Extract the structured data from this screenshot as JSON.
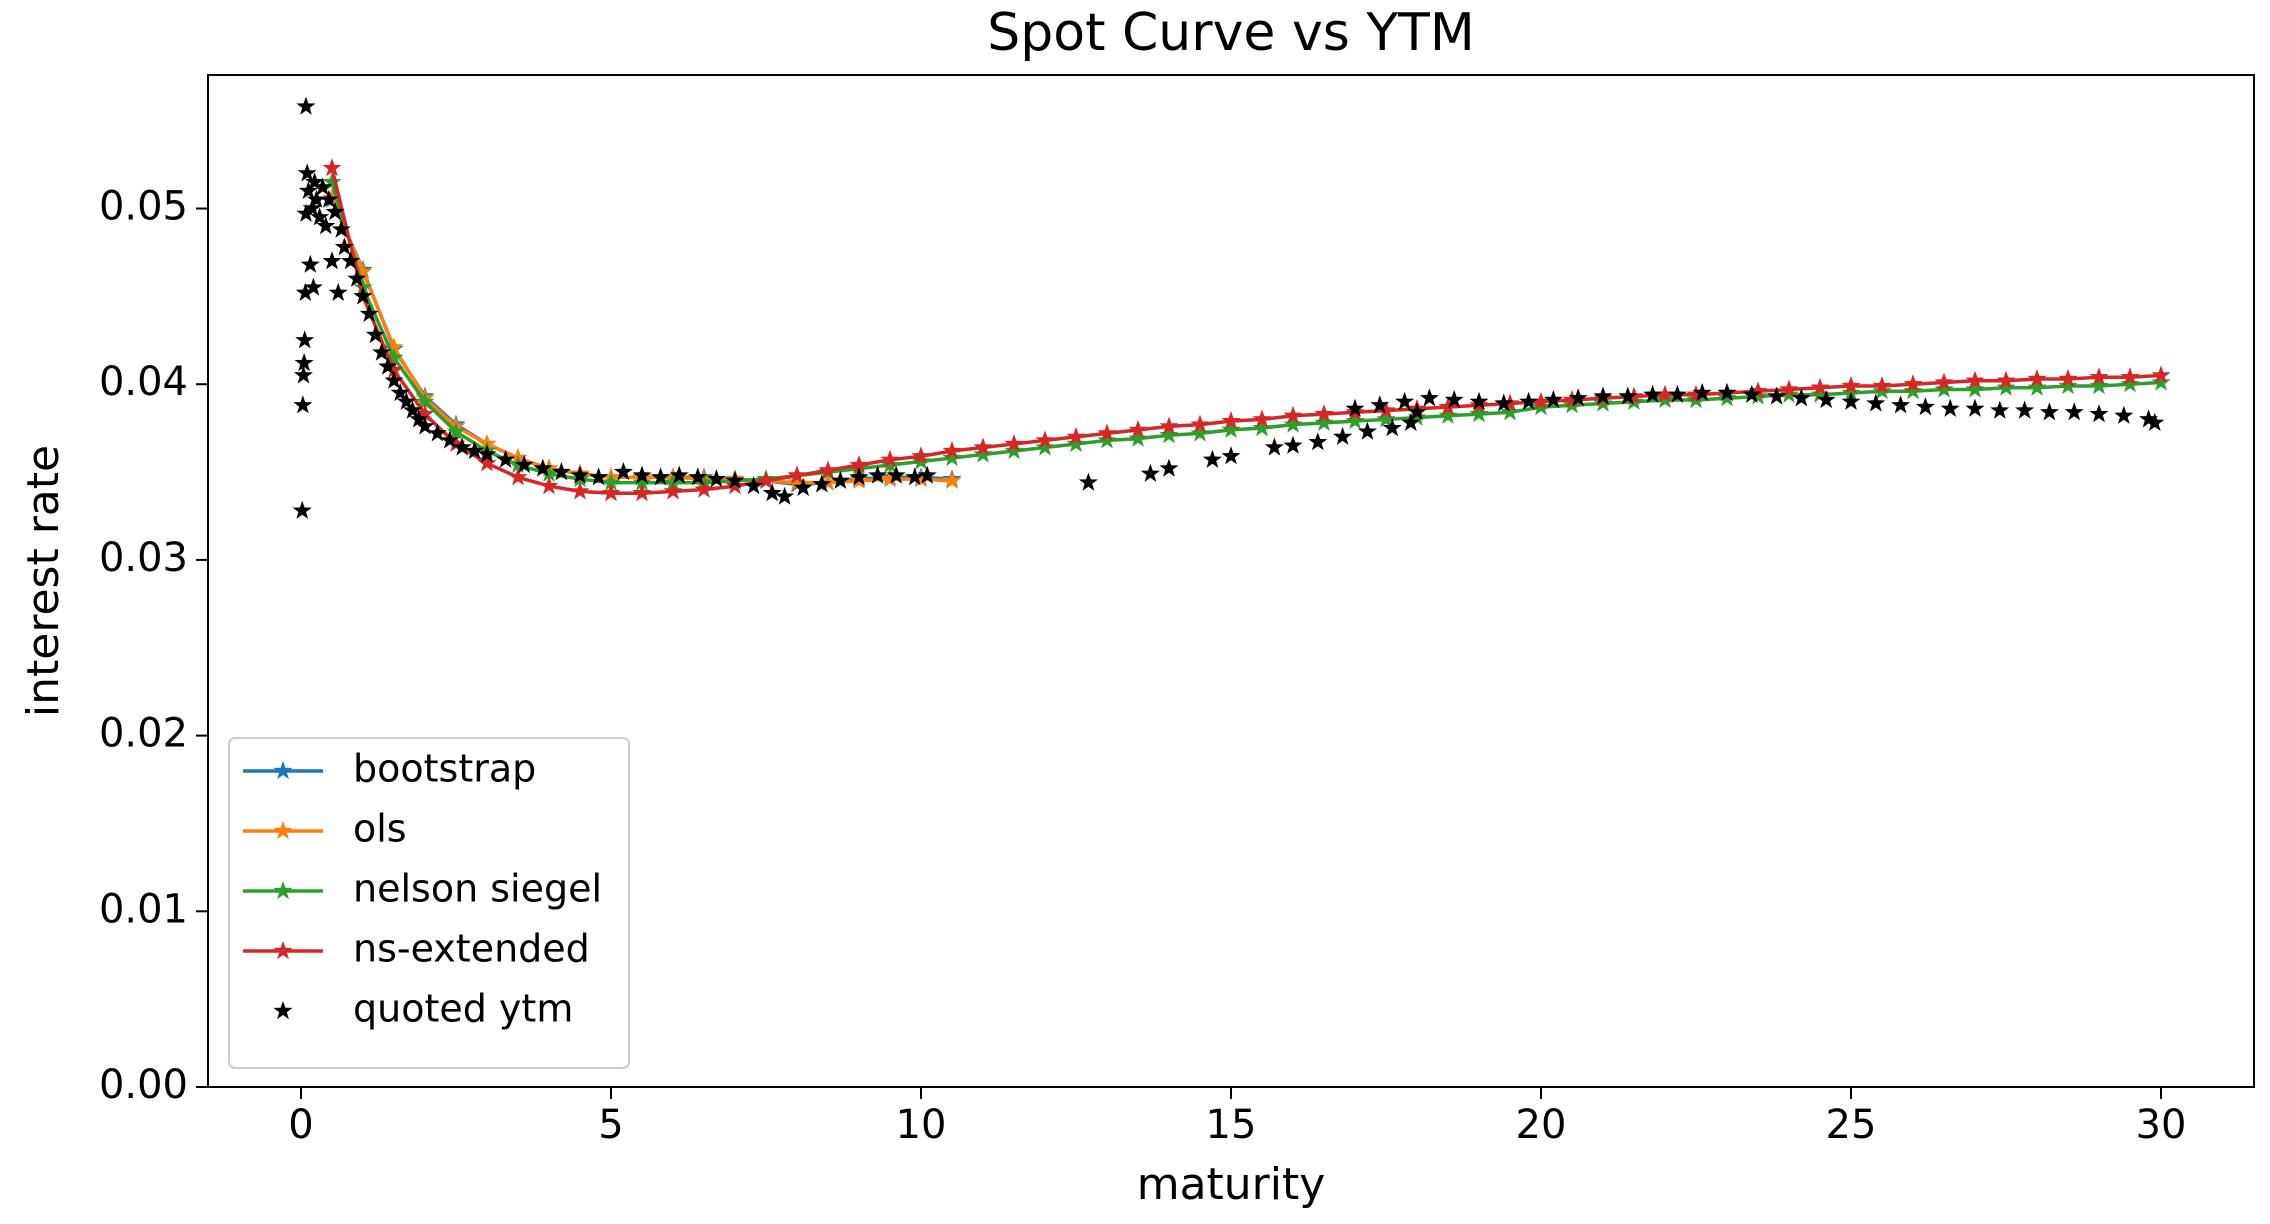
{
  "chart_data": {
    "type": "line",
    "title": "Spot Curve vs YTM",
    "xlabel": "maturity",
    "ylabel": "interest rate",
    "xlim": [
      -1.5,
      31.5
    ],
    "ylim": [
      0,
      0.0576
    ],
    "xticks": [
      0,
      5,
      10,
      15,
      20,
      25,
      30
    ],
    "yticks": [
      {
        "value": 0,
        "label": "0.00"
      },
      0.01,
      0.02,
      0.03,
      0.04,
      0.05
    ],
    "legend": "lower left",
    "series": [
      {
        "name": "bootstrap",
        "color": "#1f77b4",
        "line": true,
        "marker": "star",
        "x": [
          0.5,
          1,
          1.5,
          2,
          2.5,
          3,
          3.5,
          4,
          4.5,
          5,
          5.5,
          6,
          6.5,
          7,
          7.5,
          8,
          8.5,
          9,
          9.5,
          10,
          10.5
        ],
        "values": [
          0.0505,
          0.0465,
          0.042,
          0.0393,
          0.0377,
          0.0366,
          0.0358,
          0.0352,
          0.0349,
          0.0347,
          0.0347,
          0.0347,
          0.0347,
          0.0346,
          0.0345,
          0.0343,
          0.0344,
          0.0346,
          0.0347,
          0.0347,
          0.0346
        ]
      },
      {
        "name": "ols",
        "color": "#ff7f0e",
        "line": true,
        "marker": "star",
        "x": [
          0.5,
          1,
          1.5,
          2,
          2.5,
          3,
          3.5,
          4,
          4.5,
          5,
          5.5,
          6,
          6.5,
          7,
          7.5,
          8,
          8.5,
          9,
          9.5,
          10,
          10.5
        ],
        "values": [
          0.0506,
          0.0464,
          0.0421,
          0.0392,
          0.0376,
          0.0366,
          0.0358,
          0.0352,
          0.0349,
          0.0347,
          0.0347,
          0.0347,
          0.0346,
          0.0346,
          0.0345,
          0.0344,
          0.0344,
          0.0345,
          0.0346,
          0.0346,
          0.0345
        ]
      },
      {
        "name": "nelson siegel",
        "color": "#2ca02c",
        "line": true,
        "marker": "star",
        "x": [
          0.5,
          1,
          1.5,
          2,
          2.5,
          3,
          3.5,
          4,
          4.5,
          5,
          5.5,
          6,
          6.5,
          7,
          7.5,
          8,
          8.5,
          9,
          9.5,
          10,
          10.5,
          11,
          11.5,
          12,
          12.5,
          13,
          13.5,
          14,
          14.5,
          15,
          15.5,
          16,
          16.5,
          17,
          17.5,
          18,
          18.5,
          19,
          19.5,
          20,
          20.5,
          21,
          21.5,
          22,
          22.5,
          23,
          23.5,
          24,
          24.5,
          25,
          25.5,
          26,
          26.5,
          27,
          27.5,
          28,
          28.5,
          29,
          29.5,
          30
        ],
        "values": [
          0.0515,
          0.0455,
          0.0415,
          0.039,
          0.0373,
          0.0362,
          0.0354,
          0.0349,
          0.0346,
          0.0344,
          0.0344,
          0.0344,
          0.0344,
          0.0345,
          0.0346,
          0.0348,
          0.035,
          0.0352,
          0.0354,
          0.0356,
          0.0358,
          0.036,
          0.0362,
          0.0364,
          0.0366,
          0.0368,
          0.0369,
          0.0371,
          0.0372,
          0.0374,
          0.0375,
          0.0377,
          0.0378,
          0.0379,
          0.038,
          0.0381,
          0.0382,
          0.0383,
          0.0384,
          0.0387,
          0.0388,
          0.0389,
          0.039,
          0.0391,
          0.0391,
          0.0392,
          0.0393,
          0.0394,
          0.0394,
          0.0395,
          0.0396,
          0.0396,
          0.0397,
          0.0397,
          0.0398,
          0.0398,
          0.0399,
          0.0399,
          0.04,
          0.0401
        ]
      },
      {
        "name": "ns-extended",
        "color": "#d62728",
        "line": true,
        "marker": "star",
        "x": [
          0.5,
          1,
          1.5,
          2,
          2.5,
          3,
          3.5,
          4,
          4.5,
          5,
          5.5,
          6,
          6.5,
          7,
          7.5,
          8,
          8.5,
          9,
          9.5,
          10,
          10.5,
          11,
          11.5,
          12,
          12.5,
          13,
          13.5,
          14,
          14.5,
          15,
          15.5,
          16,
          16.5,
          17,
          17.5,
          18,
          18.5,
          19,
          19.5,
          20,
          20.5,
          21,
          21.5,
          22,
          22.5,
          23,
          23.5,
          24,
          24.5,
          25,
          25.5,
          26,
          26.5,
          27,
          27.5,
          28,
          28.5,
          29,
          29.5,
          30
        ],
        "values": [
          0.0523,
          0.045,
          0.0408,
          0.0383,
          0.0366,
          0.0355,
          0.0347,
          0.0342,
          0.0339,
          0.0338,
          0.0338,
          0.0339,
          0.034,
          0.0342,
          0.0345,
          0.0348,
          0.0351,
          0.0354,
          0.0357,
          0.0359,
          0.0362,
          0.0364,
          0.0366,
          0.0368,
          0.037,
          0.0372,
          0.0374,
          0.0376,
          0.0377,
          0.0379,
          0.038,
          0.0382,
          0.0383,
          0.0384,
          0.0385,
          0.0386,
          0.0387,
          0.0388,
          0.0389,
          0.039,
          0.0391,
          0.0392,
          0.0393,
          0.0394,
          0.0394,
          0.0395,
          0.0396,
          0.0397,
          0.0398,
          0.0399,
          0.0399,
          0.04,
          0.0401,
          0.0402,
          0.0402,
          0.0403,
          0.0403,
          0.0404,
          0.0404,
          0.0405
        ]
      },
      {
        "name": "quoted ytm",
        "color": "#000000",
        "line": false,
        "marker": "star",
        "x": [
          0.02,
          0.03,
          0.04,
          0.05,
          0.06,
          0.07,
          0.08,
          0.08,
          0.1,
          0.12,
          0.15,
          0.18,
          0.2,
          0.22,
          0.25,
          0.3,
          0.35,
          0.4,
          0.45,
          0.5,
          0.55,
          0.6,
          0.65,
          0.7,
          0.8,
          0.9,
          1.0,
          1.1,
          1.2,
          1.3,
          1.4,
          1.5,
          1.6,
          1.7,
          1.8,
          1.9,
          2.0,
          2.2,
          2.4,
          2.6,
          2.8,
          3.0,
          3.3,
          3.6,
          3.9,
          4.2,
          4.5,
          4.8,
          5.2,
          5.5,
          5.8,
          6.1,
          6.4,
          6.7,
          7.0,
          7.3,
          7.6,
          7.8,
          8.1,
          8.4,
          8.7,
          9.0,
          9.3,
          9.6,
          9.9,
          10.1,
          12.7,
          13.7,
          14.0,
          14.7,
          15.0,
          15.7,
          16.0,
          16.4,
          16.8,
          17.2,
          17.6,
          17.0,
          17.4,
          17.8,
          18.2,
          18.6,
          19.0,
          19.4,
          19.8,
          20.2,
          20.6,
          21.0,
          21.4,
          21.8,
          22.2,
          22.6,
          23.0,
          23.4,
          23.8,
          24.2,
          24.6,
          25.0,
          25.4,
          25.8,
          26.2,
          26.6,
          27.0,
          27.4,
          27.8,
          28.2,
          28.6,
          29.0,
          29.4,
          29.8,
          29.9,
          18.0,
          17.9
        ],
        "values": [
          0.0328,
          0.0388,
          0.0405,
          0.0412,
          0.0425,
          0.0452,
          0.0497,
          0.0558,
          0.052,
          0.051,
          0.0468,
          0.05,
          0.0455,
          0.0515,
          0.0505,
          0.0495,
          0.0512,
          0.049,
          0.0505,
          0.047,
          0.0498,
          0.0452,
          0.0488,
          0.0478,
          0.047,
          0.046,
          0.045,
          0.044,
          0.0428,
          0.0418,
          0.041,
          0.0402,
          0.0395,
          0.039,
          0.0385,
          0.038,
          0.0376,
          0.0372,
          0.0368,
          0.0364,
          0.0362,
          0.036,
          0.0357,
          0.0354,
          0.0352,
          0.035,
          0.0348,
          0.0347,
          0.035,
          0.0348,
          0.0347,
          0.0348,
          0.0347,
          0.0346,
          0.0345,
          0.0342,
          0.0338,
          0.0336,
          0.0341,
          0.0343,
          0.0345,
          0.0347,
          0.0348,
          0.0348,
          0.0347,
          0.0348,
          0.0344,
          0.0349,
          0.0352,
          0.0357,
          0.0359,
          0.0364,
          0.0365,
          0.0367,
          0.037,
          0.0373,
          0.0375,
          0.0386,
          0.0388,
          0.039,
          0.0392,
          0.0391,
          0.039,
          0.0389,
          0.039,
          0.0391,
          0.0392,
          0.0393,
          0.0393,
          0.0394,
          0.0394,
          0.0395,
          0.0395,
          0.0394,
          0.0393,
          0.0392,
          0.0391,
          0.039,
          0.0389,
          0.0388,
          0.0387,
          0.0386,
          0.0386,
          0.0385,
          0.0385,
          0.0384,
          0.0384,
          0.0383,
          0.0382,
          0.038,
          0.0378,
          0.0384,
          0.0378
        ]
      }
    ]
  }
}
